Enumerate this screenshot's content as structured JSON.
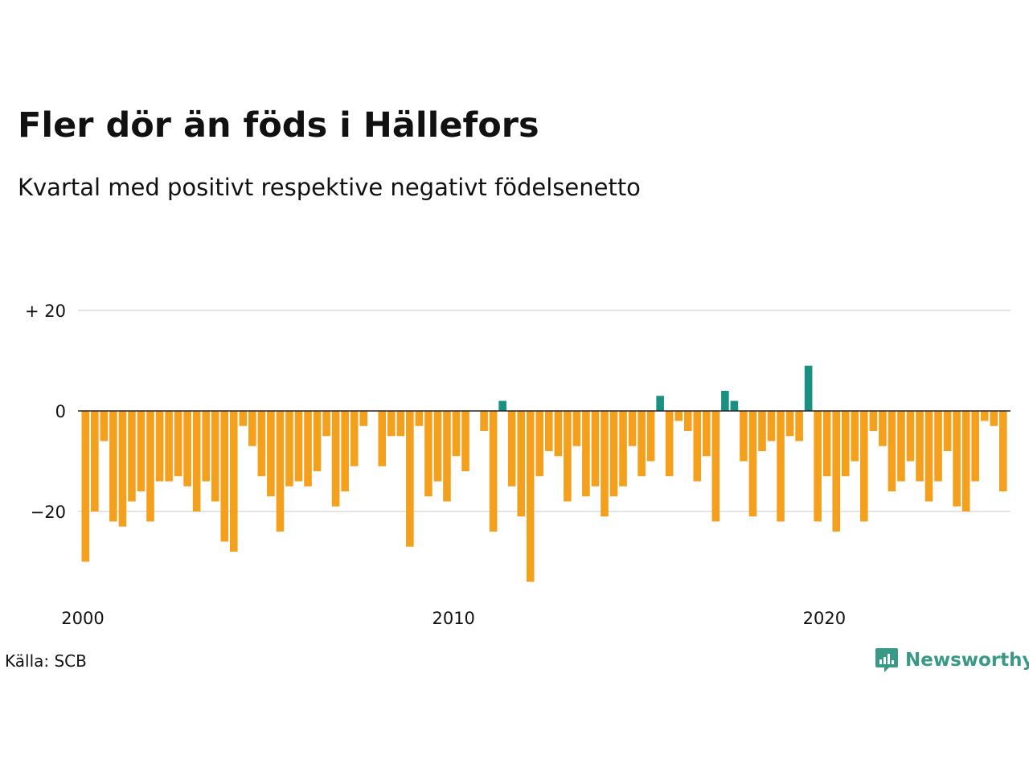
{
  "title": "Fler dör än föds i Hällefors",
  "subtitle": "Kvartal med positivt respektive negativt födelsenetto",
  "source": "Källa: SCB",
  "brand": "Newsworthy",
  "colors": {
    "negative": "#f5a01d",
    "positive": "#1a9083",
    "gridline": "#e3e3e3",
    "zeroline": "#222222",
    "brand": "#3a9986"
  },
  "chart_data": {
    "type": "bar",
    "title": "Fler dör än föds i Hällefors",
    "subtitle": "Kvartal med positivt respektive negativt födelsenetto",
    "xlabel": "",
    "ylabel": "",
    "x_start": "2000-Q1",
    "frequency": "quarterly",
    "ylim": [
      -35,
      20
    ],
    "y_ticks": [
      {
        "value": 20,
        "label": "+ 20"
      },
      {
        "value": 0,
        "label": "0"
      },
      {
        "value": -20,
        "label": "−20"
      }
    ],
    "x_ticks": [
      {
        "year": 2000,
        "label": "2000"
      },
      {
        "year": 2010,
        "label": "2010"
      },
      {
        "year": 2020,
        "label": "2020"
      }
    ],
    "grid": true,
    "values": [
      -30,
      -20,
      -6,
      -22,
      -23,
      -18,
      -16,
      -22,
      -14,
      -14,
      -13,
      -15,
      -20,
      -14,
      -18,
      -26,
      -28,
      -3,
      -7,
      -13,
      -17,
      -24,
      -15,
      -14,
      -15,
      -12,
      -5,
      -19,
      -16,
      -11,
      -3,
      0,
      -11,
      -5,
      -5,
      -27,
      -3,
      -17,
      -14,
      -18,
      -9,
      -12,
      0,
      -4,
      -24,
      2,
      -15,
      -21,
      -34,
      -13,
      -8,
      -9,
      -18,
      -7,
      -17,
      -15,
      -21,
      -17,
      -15,
      -7,
      -13,
      -10,
      3,
      -13,
      -2,
      -4,
      -14,
      -9,
      -22,
      4,
      2,
      -10,
      -21,
      -8,
      -6,
      -22,
      -5,
      -6,
      9,
      -22,
      -13,
      -24,
      -13,
      -10,
      -22,
      -4,
      -7,
      -16,
      -14,
      -10,
      -14,
      -18,
      -14,
      -8,
      -19,
      -20,
      -14,
      -2,
      -3,
      -16
    ]
  }
}
